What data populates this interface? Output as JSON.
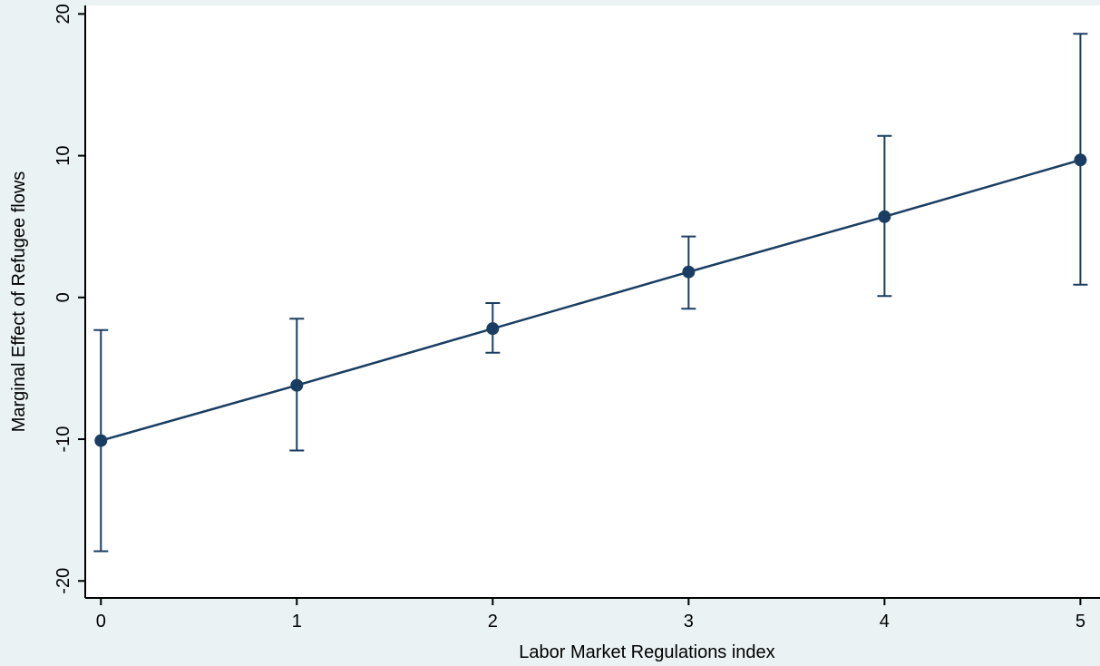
{
  "chart_data": {
    "type": "line",
    "title": "",
    "xlabel": "Labor Market Regulations index",
    "ylabel": "Marginal Effect of Refugee flows",
    "x": [
      0,
      1,
      2,
      3,
      4,
      5
    ],
    "x_tick_labels": [
      "0",
      "1",
      "2",
      "3",
      "4",
      "5"
    ],
    "y_ticks": [
      -20,
      -10,
      0,
      10,
      20
    ],
    "y_tick_labels": [
      "-20",
      "-10",
      "0",
      "10",
      "20"
    ],
    "xlim": [
      -0.08,
      5.1
    ],
    "ylim": [
      -21.2,
      20.6
    ],
    "grid": false,
    "series": [
      {
        "values": [
          -10.1,
          -6.2,
          -2.2,
          1.8,
          5.7,
          9.7
        ],
        "ci_lower": [
          -17.9,
          -10.8,
          -3.9,
          -0.8,
          0.1,
          0.9
        ],
        "ci_upper": [
          -2.3,
          -1.5,
          -0.4,
          4.3,
          11.4,
          18.6
        ],
        "color": "#1a3d63"
      }
    ],
    "colors": {
      "background": "#eaf2f3",
      "plot_background": "#ffffff",
      "series": "#1a3d63",
      "axis": "#000000"
    }
  }
}
